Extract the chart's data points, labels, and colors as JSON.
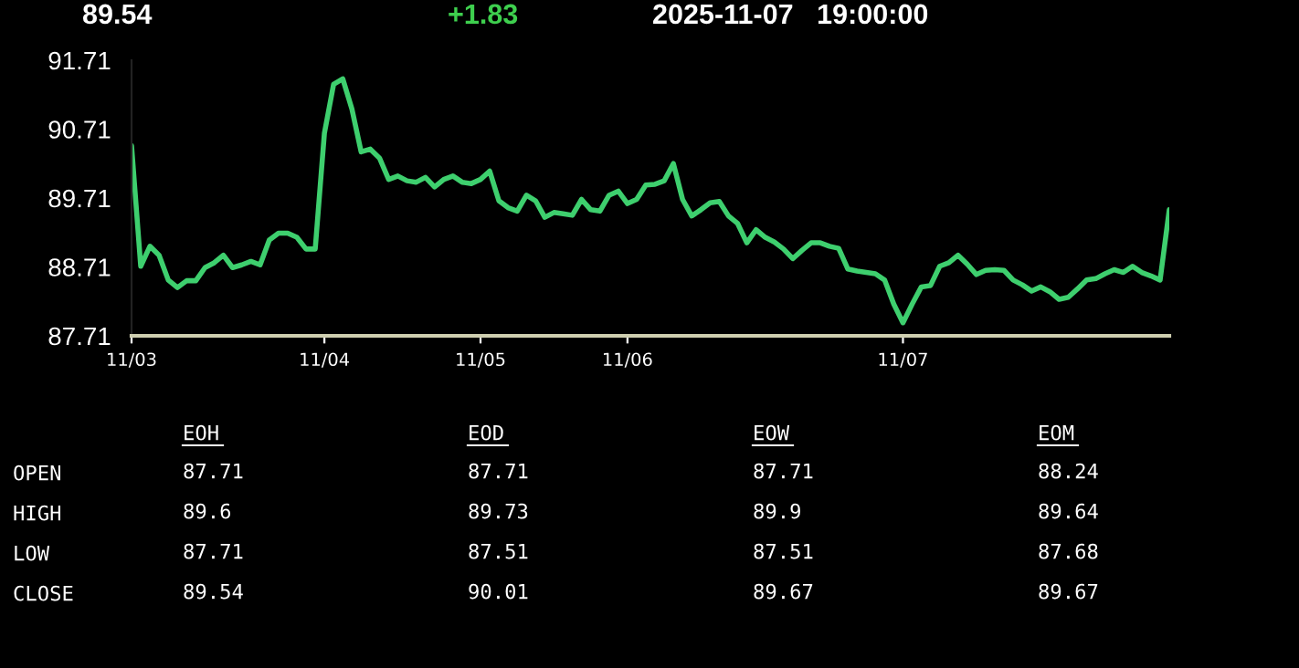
{
  "chart_data": [
    {
      "type": "line",
      "title": "89.54",
      "subtitle": "+1.83",
      "annotations": [
        "2025-11-07   19:00:00"
      ],
      "categories": [
        "11/03",
        null,
        null,
        null,
        null,
        null,
        null,
        null,
        null,
        null,
        null,
        null,
        null,
        null,
        null,
        null,
        null,
        null,
        null,
        null,
        null,
        "11/04",
        null,
        null,
        null,
        null,
        null,
        null,
        null,
        null,
        null,
        null,
        null,
        null,
        null,
        null,
        null,
        null,
        "11/05",
        null,
        null,
        null,
        null,
        null,
        null,
        null,
        null,
        null,
        null,
        null,
        null,
        null,
        null,
        null,
        "11/06",
        null,
        null,
        null,
        null,
        null,
        null,
        null,
        null,
        null,
        null,
        null,
        null,
        null,
        null,
        null,
        null,
        null,
        null,
        null,
        null,
        null,
        null,
        null,
        null,
        null,
        null,
        null,
        null,
        null,
        "11/07",
        null,
        null,
        null,
        null,
        null,
        null,
        null,
        null,
        null,
        null,
        null,
        null,
        null,
        null,
        null,
        null,
        null,
        null,
        null,
        null,
        null,
        null,
        null,
        null,
        null,
        null,
        null,
        null,
        null
      ],
      "series": [
        {
          "color": "#3ecf6e",
          "values": [
            90.47,
            88.72,
            89.01,
            88.88,
            88.52,
            88.41,
            88.51,
            88.51,
            88.7,
            88.77,
            88.88,
            88.7,
            88.74,
            88.79,
            88.74,
            89.1,
            89.2,
            89.2,
            89.14,
            88.97,
            88.97,
            90.65,
            91.36,
            91.44,
            91.0,
            90.38,
            90.42,
            90.29,
            89.98,
            90.03,
            89.96,
            89.94,
            90.01,
            89.87,
            89.98,
            90.03,
            89.94,
            89.92,
            89.98,
            90.1,
            89.67,
            89.57,
            89.52,
            89.75,
            89.67,
            89.43,
            89.5,
            89.48,
            89.46,
            89.69,
            89.54,
            89.52,
            89.75,
            89.81,
            89.63,
            89.69,
            89.9,
            89.91,
            89.96,
            90.21,
            89.69,
            89.45,
            89.54,
            89.64,
            89.66,
            89.45,
            89.34,
            89.06,
            89.25,
            89.14,
            89.07,
            88.97,
            88.83,
            88.95,
            89.06,
            89.06,
            89.01,
            88.98,
            88.68,
            88.65,
            88.63,
            88.61,
            88.52,
            88.17,
            87.9,
            88.17,
            88.42,
            88.44,
            88.72,
            88.77,
            88.88,
            88.75,
            88.6,
            88.66,
            88.67,
            88.66,
            88.52,
            88.45,
            88.36,
            88.42,
            88.35,
            88.24,
            88.27,
            88.39,
            88.52,
            88.54,
            88.61,
            88.67,
            88.63,
            88.72,
            88.63,
            88.58,
            88.52,
            89.54
          ]
        }
      ],
      "ylim": [
        87.71,
        91.71
      ],
      "yticks": [
        87.71,
        88.71,
        89.71,
        90.71,
        91.71
      ],
      "grid": false,
      "marker": "none",
      "line_style": "solid"
    },
    {
      "type": "other",
      "categories": [
        "EOH",
        "EOD",
        "EOW",
        "EOM"
      ],
      "y_categories": [
        "OPEN",
        "HIGH",
        "LOW",
        "CLOSE"
      ],
      "annotations": [
        "87.71",
        "87.71",
        "87.71",
        "88.24",
        "89.6",
        "89.73",
        "89.9",
        "89.64",
        "87.71",
        "87.51",
        "87.51",
        "87.68",
        "89.54",
        "90.01",
        "89.67",
        "89.67"
      ]
    }
  ]
}
